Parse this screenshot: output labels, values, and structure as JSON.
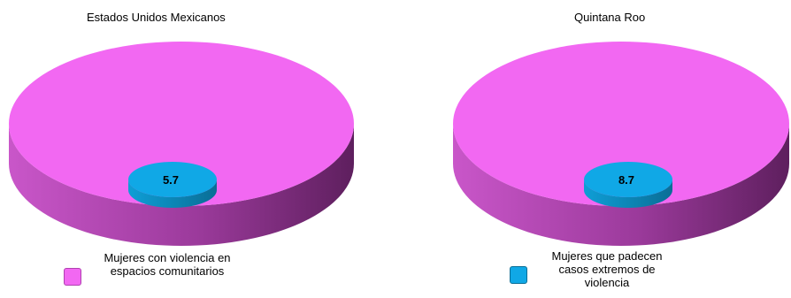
{
  "chart_data": [
    {
      "type": "pie",
      "title": "Estados Unidos Mexicanos",
      "slices": [
        {
          "label": "",
          "value": 94.3,
          "color": "#f268f2"
        },
        {
          "label": "Mujeres con violencia en espacios comunitarios",
          "value": 5.7,
          "color": "#10a8e6"
        }
      ],
      "data_labels": [
        "5.7"
      ],
      "legend": {
        "placement": "bottom",
        "entries": [
          {
            "label": "Mujeres con violencia en espacios comunitarios",
            "color": "#f268f2"
          }
        ]
      }
    },
    {
      "type": "pie",
      "title": "Quintana Roo",
      "slices": [
        {
          "label": "",
          "value": 91.3,
          "color": "#f268f2"
        },
        {
          "label": "Mujeres que padecen casos extremos de violencia",
          "value": 8.7,
          "color": "#10a8e6"
        }
      ],
      "data_labels": [
        "8.7"
      ],
      "legend": {
        "placement": "bottom",
        "entries": [
          {
            "label": "Mujeres que padecen casos extremos de violencia",
            "color": "#10a8e6"
          }
        ]
      }
    }
  ]
}
